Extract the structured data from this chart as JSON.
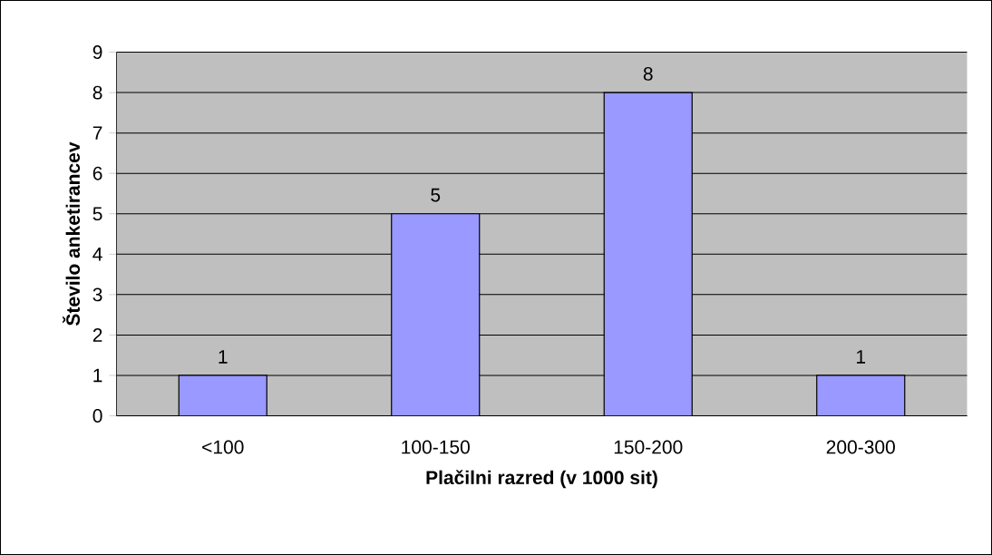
{
  "chart_data": {
    "type": "bar",
    "xlabel": "Plačilni razred (v 1000 sit)",
    "ylabel": "Število anketirancev",
    "categories": [
      "<100",
      "100-150",
      "150-200",
      "200-300"
    ],
    "values": [
      1,
      5,
      8,
      1
    ],
    "color": "#9999ff",
    "ylim": [
      0,
      9
    ],
    "yticks": [
      0,
      1,
      2,
      3,
      4,
      5,
      6,
      7,
      8,
      9
    ],
    "grid": "y",
    "data_labels": true
  }
}
